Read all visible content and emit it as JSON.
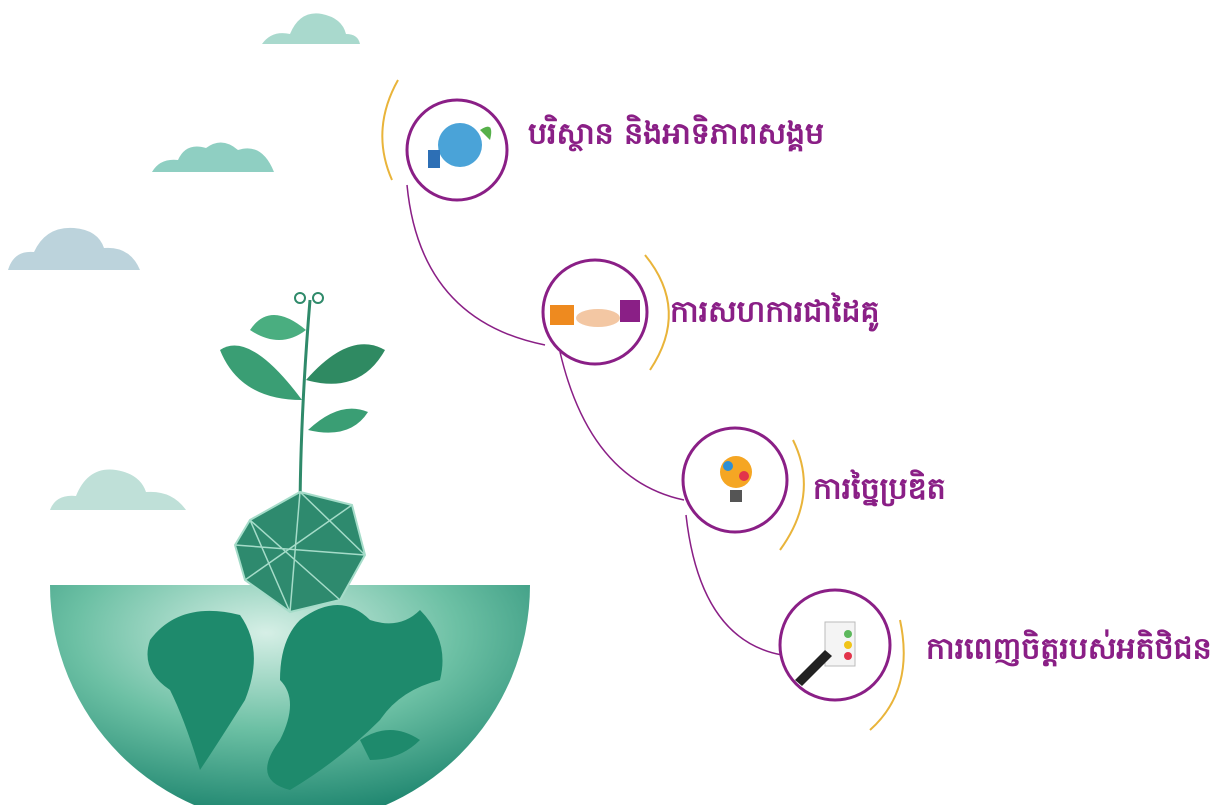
{
  "items": [
    {
      "label": "បរិស្ថាន និងអាទិភាពសង្គម"
    },
    {
      "label": "ការសហការជាដៃគូ"
    },
    {
      "label": "ការច្នៃប្រឌិត"
    },
    {
      "label": "ការពេញចិត្តរបស់អតិថិជន"
    }
  ]
}
